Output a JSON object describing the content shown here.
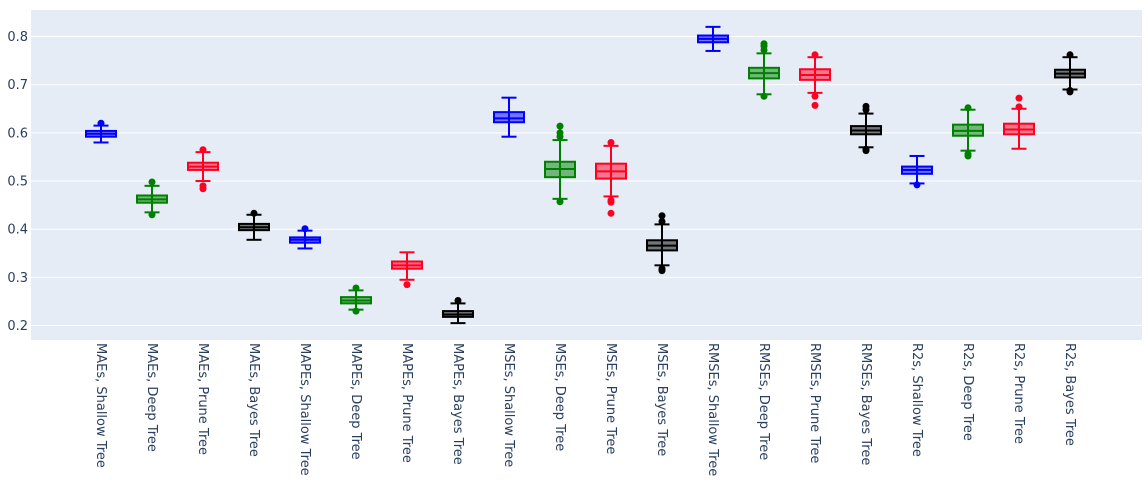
{
  "chart_data": {
    "type": "box",
    "title": "",
    "xlabel": "",
    "ylabel": "",
    "ylim": [
      0.17,
      0.855
    ],
    "yticks": [
      0.2,
      0.3,
      0.4,
      0.5,
      0.6,
      0.7,
      0.8
    ],
    "ytick_labels": [
      "0.2",
      "0.3",
      "0.4",
      "0.5",
      "0.6",
      "0.7",
      "0.8"
    ],
    "grid": true,
    "legend": "none",
    "plot_background": "#e5ecf6",
    "colors": {
      "Shallow Tree": "#0000ff",
      "Deep Tree": "#008000",
      "Prune Tree": "#ff0022",
      "Bayes Tree": "#000000"
    },
    "categories": [
      "MAEs, Shallow Tree",
      "MAEs, Deep Tree",
      "MAEs, Prune Tree",
      "MAEs, Bayes Tree",
      "MAPEs, Shallow Tree",
      "MAPEs, Deep Tree",
      "MAPEs, Prune Tree",
      "MAPEs, Bayes Tree",
      "MSEs, Shallow Tree",
      "MSEs, Deep Tree",
      "MSEs, Prune Tree",
      "MSEs, Bayes Tree",
      "RMSEs, Shallow Tree",
      "RMSEs, Deep Tree",
      "RMSEs, Prune Tree",
      "RMSEs, Bayes Tree",
      "R2s, Shallow Tree",
      "R2s, Deep Tree",
      "R2s, Prune Tree",
      "R2s, Bayes Tree"
    ],
    "boxes": [
      {
        "model": "Shallow Tree",
        "min": 0.58,
        "q1": 0.592,
        "median": 0.598,
        "q3": 0.604,
        "max": 0.615,
        "outliers": [
          0.62
        ]
      },
      {
        "model": "Deep Tree",
        "min": 0.435,
        "q1": 0.455,
        "median": 0.462,
        "q3": 0.47,
        "max": 0.49,
        "outliers": [
          0.43,
          0.498
        ]
      },
      {
        "model": "Prune Tree",
        "min": 0.5,
        "q1": 0.523,
        "median": 0.53,
        "q3": 0.538,
        "max": 0.56,
        "outliers": [
          0.484,
          0.49,
          0.565
        ]
      },
      {
        "model": "Bayes Tree",
        "min": 0.378,
        "q1": 0.398,
        "median": 0.404,
        "q3": 0.411,
        "max": 0.43,
        "outliers": [
          0.433
        ]
      },
      {
        "model": "Shallow Tree",
        "min": 0.36,
        "q1": 0.372,
        "median": 0.378,
        "q3": 0.383,
        "max": 0.397,
        "outliers": [
          0.401
        ]
      },
      {
        "model": "Deep Tree",
        "min": 0.233,
        "q1": 0.246,
        "median": 0.252,
        "q3": 0.259,
        "max": 0.273,
        "outliers": [
          0.23,
          0.278
        ]
      },
      {
        "model": "Prune Tree",
        "min": 0.295,
        "q1": 0.318,
        "median": 0.325,
        "q3": 0.333,
        "max": 0.352,
        "outliers": [
          0.285
        ]
      },
      {
        "model": "Bayes Tree",
        "min": 0.205,
        "q1": 0.218,
        "median": 0.223,
        "q3": 0.23,
        "max": 0.246,
        "outliers": [
          0.252
        ]
      },
      {
        "model": "Shallow Tree",
        "min": 0.592,
        "q1": 0.622,
        "median": 0.63,
        "q3": 0.643,
        "max": 0.673,
        "outliers": []
      },
      {
        "model": "Deep Tree",
        "min": 0.463,
        "q1": 0.508,
        "median": 0.525,
        "q3": 0.54,
        "max": 0.585,
        "outliers": [
          0.457,
          0.592,
          0.6,
          0.614
        ]
      },
      {
        "model": "Prune Tree",
        "min": 0.468,
        "q1": 0.505,
        "median": 0.52,
        "q3": 0.536,
        "max": 0.573,
        "outliers": [
          0.433,
          0.456,
          0.46,
          0.58
        ]
      },
      {
        "model": "Bayes Tree",
        "min": 0.325,
        "q1": 0.356,
        "median": 0.366,
        "q3": 0.377,
        "max": 0.41,
        "outliers": [
          0.314,
          0.318,
          0.416,
          0.428
        ]
      },
      {
        "model": "Shallow Tree",
        "min": 0.77,
        "q1": 0.788,
        "median": 0.795,
        "q3": 0.802,
        "max": 0.82,
        "outliers": []
      },
      {
        "model": "Deep Tree",
        "min": 0.68,
        "q1": 0.713,
        "median": 0.724,
        "q3": 0.735,
        "max": 0.765,
        "outliers": [
          0.676,
          0.772,
          0.78,
          0.785
        ]
      },
      {
        "model": "Prune Tree",
        "min": 0.683,
        "q1": 0.71,
        "median": 0.72,
        "q3": 0.732,
        "max": 0.757,
        "outliers": [
          0.657,
          0.676,
          0.762
        ]
      },
      {
        "model": "Bayes Tree",
        "min": 0.57,
        "q1": 0.597,
        "median": 0.605,
        "q3": 0.614,
        "max": 0.64,
        "outliers": [
          0.563,
          0.566,
          0.648,
          0.655
        ]
      },
      {
        "model": "Shallow Tree",
        "min": 0.495,
        "q1": 0.515,
        "median": 0.523,
        "q3": 0.53,
        "max": 0.552,
        "outliers": [
          0.492
        ]
      },
      {
        "model": "Deep Tree",
        "min": 0.563,
        "q1": 0.594,
        "median": 0.604,
        "q3": 0.617,
        "max": 0.648,
        "outliers": [
          0.552,
          0.556,
          0.652
        ]
      },
      {
        "model": "Prune Tree",
        "min": 0.567,
        "q1": 0.597,
        "median": 0.607,
        "q3": 0.619,
        "max": 0.65,
        "outliers": [
          0.654,
          0.672
        ]
      },
      {
        "model": "Bayes Tree",
        "min": 0.69,
        "q1": 0.715,
        "median": 0.723,
        "q3": 0.731,
        "max": 0.757,
        "outliers": [
          0.685,
          0.688,
          0.762
        ]
      }
    ]
  }
}
